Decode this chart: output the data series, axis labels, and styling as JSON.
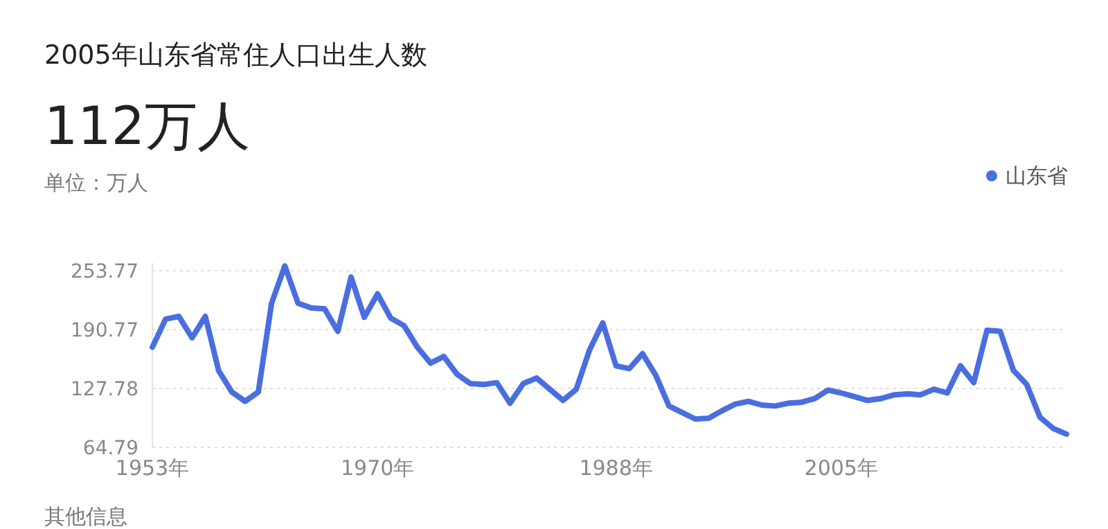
{
  "chart_data": {
    "type": "line",
    "title": "2005年山东省常住人口出生人数",
    "subtitle": "112万人",
    "ylabel": "单位：万人",
    "x": [
      1953,
      1954,
      1955,
      1956,
      1957,
      1958,
      1959,
      1960,
      1961,
      1962,
      1963,
      1964,
      1965,
      1966,
      1967,
      1968,
      1969,
      1970,
      1971,
      1972,
      1973,
      1974,
      1975,
      1976,
      1977,
      1978,
      1979,
      1980,
      1981,
      1982,
      1983,
      1984,
      1985,
      1986,
      1987,
      1988,
      1989,
      1990,
      1991,
      1992,
      1993,
      1994,
      1995,
      1996,
      1997,
      1998,
      1999,
      2000,
      2001,
      2002,
      2003,
      2004,
      2005,
      2006,
      2007,
      2008,
      2009,
      2010,
      2011,
      2012,
      2013,
      2014,
      2015,
      2016,
      2017,
      2018,
      2019,
      2020,
      2021,
      2022
    ],
    "series": [
      {
        "name": "山东省",
        "color": "#4a6ee0",
        "values": [
          172,
          202,
          205,
          182,
          205,
          147,
          124,
          114,
          124,
          219,
          259,
          219,
          214,
          213,
          189,
          247,
          204,
          229,
          203,
          195,
          172,
          155,
          162,
          143,
          133,
          132,
          134,
          112,
          133,
          139,
          127,
          115,
          127,
          169,
          198,
          152,
          149,
          165,
          142,
          109,
          102,
          95,
          96,
          104,
          111,
          114,
          110,
          109,
          112,
          113,
          117,
          126,
          123,
          119,
          115,
          117,
          121,
          122,
          121,
          127,
          123,
          152,
          134,
          190,
          189,
          147,
          132,
          97,
          85,
          79
        ]
      }
    ],
    "xlim": [
      1953,
      2022
    ],
    "ylim": [
      64.79,
      262
    ],
    "xticks": [
      {
        "value": 1953,
        "label": "1953年"
      },
      {
        "value": 1970,
        "label": "1970年"
      },
      {
        "value": 1988,
        "label": "1988年"
      },
      {
        "value": 2005,
        "label": "2005年"
      }
    ],
    "yticks": [
      64.79,
      127.78,
      190.77,
      253.77
    ],
    "grid": "y",
    "legend": "top right",
    "marker": "none",
    "line_style": "solid",
    "annotations": [
      "其他信息"
    ]
  }
}
